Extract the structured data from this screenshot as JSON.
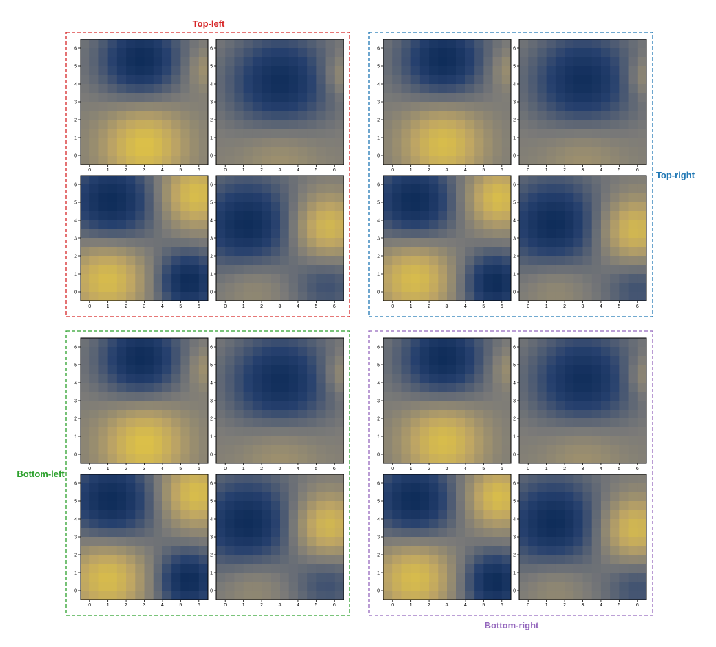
{
  "colors": {
    "cmap_low": "#00204C",
    "cmap_mid": "#7C7B78",
    "cmap_high": "#E8CB3C",
    "Top-left": "#d62728",
    "Top-right": "#1f77b4",
    "Bottom-left": "#2ca02c",
    "Bottom-right": "#9467bd"
  },
  "chart_data": {
    "type": "heatmap",
    "colormap": "cividis",
    "layout": "2x2 groups of 2x2 heatmaps",
    "grid": false,
    "xlim": [
      -0.5,
      6.5
    ],
    "ylim": [
      -0.5,
      6.5
    ],
    "x_ticks": [
      "0",
      "1",
      "2",
      "3",
      "4",
      "5",
      "6"
    ],
    "y_ticks": [
      "0",
      "1",
      "2",
      "3",
      "4",
      "5",
      "6"
    ],
    "groups": [
      {
        "name": "Top-left",
        "label_position": "top",
        "panels": [
          {
            "cmin": 0.1,
            "cmax": 0.92,
            "features": [
              {
                "x": 2.8,
                "y": 5.3,
                "w": 1.6,
                "v": -1
              },
              {
                "x": 3.0,
                "y": 0.6,
                "w": 1.6,
                "v": 1
              },
              {
                "x": 6.4,
                "y": 4.8,
                "w": 0.8,
                "v": 0.35
              }
            ]
          },
          {
            "cmin": 0.12,
            "cmax": 0.62,
            "features": [
              {
                "x": 3.0,
                "y": 4.0,
                "w": 2.0,
                "v": -1
              },
              {
                "x": 3.0,
                "y": 0.3,
                "w": 1.6,
                "v": 0.35
              },
              {
                "x": 6.4,
                "y": 4.5,
                "w": 0.8,
                "v": 0.35
              }
            ]
          },
          {
            "cmin": 0.1,
            "cmax": 0.9,
            "features": [
              {
                "x": 1.2,
                "y": 5.0,
                "w": 1.7,
                "v": -1
              },
              {
                "x": 1.0,
                "y": 0.8,
                "w": 1.5,
                "v": 1
              },
              {
                "x": 5.8,
                "y": 5.4,
                "w": 1.3,
                "v": 1
              },
              {
                "x": 5.4,
                "y": 0.6,
                "w": 1.2,
                "v": -1
              }
            ]
          },
          {
            "cmin": 0.1,
            "cmax": 0.86,
            "features": [
              {
                "x": 1.2,
                "y": 3.7,
                "w": 1.8,
                "v": -1
              },
              {
                "x": 5.6,
                "y": 3.6,
                "w": 1.3,
                "v": 1
              },
              {
                "x": 1.5,
                "y": 0.5,
                "w": 1.3,
                "v": 0.35
              },
              {
                "x": 5.6,
                "y": 0.5,
                "w": 1.2,
                "v": -0.45
              }
            ]
          }
        ]
      },
      {
        "name": "Top-right",
        "label_position": "right",
        "panels": [
          {
            "cmin": 0.1,
            "cmax": 0.9,
            "features": [
              {
                "x": 2.8,
                "y": 5.3,
                "w": 1.6,
                "v": -1
              },
              {
                "x": 2.8,
                "y": 0.7,
                "w": 1.6,
                "v": 1
              },
              {
                "x": 6.4,
                "y": 4.8,
                "w": 0.8,
                "v": 0.35
              }
            ]
          },
          {
            "cmin": 0.12,
            "cmax": 0.62,
            "features": [
              {
                "x": 3.0,
                "y": 4.1,
                "w": 2.0,
                "v": -1
              },
              {
                "x": 3.0,
                "y": 0.3,
                "w": 1.6,
                "v": 0.35
              },
              {
                "x": 6.4,
                "y": 4.4,
                "w": 0.8,
                "v": 0.35
              }
            ]
          },
          {
            "cmin": 0.1,
            "cmax": 0.9,
            "features": [
              {
                "x": 1.2,
                "y": 5.0,
                "w": 1.6,
                "v": -1
              },
              {
                "x": 1.2,
                "y": 0.8,
                "w": 1.5,
                "v": 1
              },
              {
                "x": 5.8,
                "y": 5.2,
                "w": 1.2,
                "v": 1
              },
              {
                "x": 5.6,
                "y": 0.5,
                "w": 1.2,
                "v": -1
              }
            ]
          },
          {
            "cmin": 0.1,
            "cmax": 0.86,
            "features": [
              {
                "x": 1.4,
                "y": 3.7,
                "w": 1.8,
                "v": -1
              },
              {
                "x": 5.8,
                "y": 3.4,
                "w": 1.3,
                "v": 1
              },
              {
                "x": 1.5,
                "y": 0.5,
                "w": 1.3,
                "v": 0.35
              },
              {
                "x": 6.0,
                "y": 0.3,
                "w": 1.2,
                "v": -0.45
              }
            ]
          }
        ]
      },
      {
        "name": "Bottom-left",
        "label_position": "left",
        "panels": [
          {
            "cmin": 0.1,
            "cmax": 0.92,
            "features": [
              {
                "x": 2.8,
                "y": 5.3,
                "w": 1.6,
                "v": -1
              },
              {
                "x": 3.0,
                "y": 0.6,
                "w": 1.6,
                "v": 1
              },
              {
                "x": 6.4,
                "y": 4.8,
                "w": 0.8,
                "v": 0.35
              }
            ]
          },
          {
            "cmin": 0.12,
            "cmax": 0.62,
            "features": [
              {
                "x": 3.0,
                "y": 4.0,
                "w": 2.0,
                "v": -1
              },
              {
                "x": 3.0,
                "y": 0.3,
                "w": 1.6,
                "v": 0.35
              },
              {
                "x": 6.4,
                "y": 4.5,
                "w": 0.8,
                "v": 0.35
              }
            ]
          },
          {
            "cmin": 0.1,
            "cmax": 0.9,
            "features": [
              {
                "x": 1.2,
                "y": 5.0,
                "w": 1.7,
                "v": -1
              },
              {
                "x": 1.0,
                "y": 0.8,
                "w": 1.5,
                "v": 1
              },
              {
                "x": 5.8,
                "y": 5.4,
                "w": 1.3,
                "v": 1
              },
              {
                "x": 5.4,
                "y": 0.6,
                "w": 1.2,
                "v": -1
              }
            ]
          },
          {
            "cmin": 0.1,
            "cmax": 0.86,
            "features": [
              {
                "x": 1.2,
                "y": 3.7,
                "w": 1.8,
                "v": -1
              },
              {
                "x": 5.6,
                "y": 3.6,
                "w": 1.3,
                "v": 1
              },
              {
                "x": 1.5,
                "y": 0.5,
                "w": 1.3,
                "v": 0.35
              },
              {
                "x": 5.6,
                "y": 0.5,
                "w": 1.2,
                "v": -0.45
              }
            ]
          }
        ]
      },
      {
        "name": "Bottom-right",
        "label_position": "bottom",
        "panels": [
          {
            "cmin": 0.1,
            "cmax": 0.9,
            "features": [
              {
                "x": 2.8,
                "y": 5.3,
                "w": 1.6,
                "v": -1
              },
              {
                "x": 2.8,
                "y": 0.7,
                "w": 1.6,
                "v": 1
              },
              {
                "x": 6.4,
                "y": 4.8,
                "w": 0.8,
                "v": 0.35
              }
            ]
          },
          {
            "cmin": 0.12,
            "cmax": 0.62,
            "features": [
              {
                "x": 3.0,
                "y": 4.1,
                "w": 2.0,
                "v": -1
              },
              {
                "x": 3.0,
                "y": 0.3,
                "w": 1.6,
                "v": 0.35
              },
              {
                "x": 6.4,
                "y": 4.4,
                "w": 0.8,
                "v": 0.35
              }
            ]
          },
          {
            "cmin": 0.1,
            "cmax": 0.9,
            "features": [
              {
                "x": 1.2,
                "y": 5.0,
                "w": 1.6,
                "v": -1
              },
              {
                "x": 1.2,
                "y": 0.8,
                "w": 1.5,
                "v": 1
              },
              {
                "x": 5.8,
                "y": 5.2,
                "w": 1.2,
                "v": 1
              },
              {
                "x": 5.6,
                "y": 0.5,
                "w": 1.2,
                "v": -1
              }
            ]
          },
          {
            "cmin": 0.1,
            "cmax": 0.86,
            "features": [
              {
                "x": 1.4,
                "y": 3.7,
                "w": 1.8,
                "v": -1
              },
              {
                "x": 5.8,
                "y": 3.4,
                "w": 1.3,
                "v": 1
              },
              {
                "x": 1.5,
                "y": 0.5,
                "w": 1.3,
                "v": 0.35
              },
              {
                "x": 6.0,
                "y": 0.3,
                "w": 1.2,
                "v": -0.45
              }
            ]
          }
        ]
      }
    ]
  }
}
